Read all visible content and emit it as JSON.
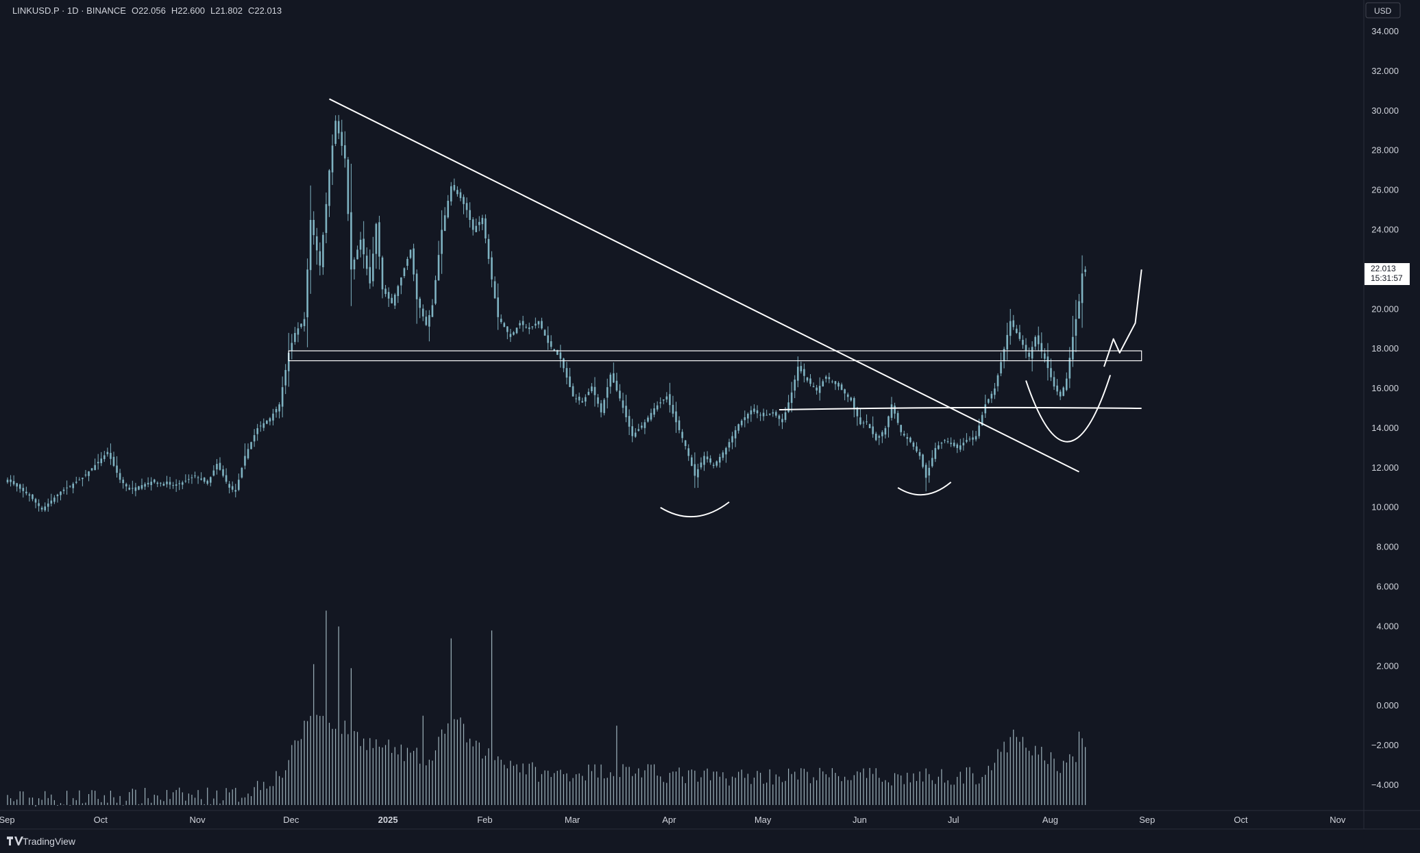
{
  "legend": {
    "symbol": "LINKUSD.P",
    "interval": "1D",
    "exchange": "BINANCE",
    "open": "O22.056",
    "high": "H22.600",
    "low": "L21.802",
    "close": "C22.013"
  },
  "currency_label": "USD",
  "last_price": {
    "value": "22.013",
    "countdown": "15:31:57"
  },
  "footer": {
    "brand": "TradingView"
  },
  "colors": {
    "background": "#131722",
    "candle": "#7fb3c2",
    "volume": "#9fb4bd",
    "drawings": "#ffffff",
    "text": "#d1d4dc"
  },
  "chart_data": {
    "type": "candlestick",
    "title": "",
    "y_ticks": [
      "34.000",
      "32.000",
      "30.000",
      "28.000",
      "26.000",
      "24.000",
      "22.000",
      "20.000",
      "18.000",
      "16.000",
      "14.000",
      "12.000",
      "10.000",
      "8.000",
      "6.000",
      "4.000",
      "2.000",
      "0.000",
      "−2.000",
      "−4.000"
    ],
    "ylim": [
      -5,
      35
    ],
    "x_ticks": [
      {
        "label": "Sep",
        "date": "2024-09-01",
        "bold": false
      },
      {
        "label": "Oct",
        "date": "2024-10-01",
        "bold": false
      },
      {
        "label": "Nov",
        "date": "2024-11-01",
        "bold": false
      },
      {
        "label": "Dec",
        "date": "2024-12-01",
        "bold": false
      },
      {
        "label": "2025",
        "date": "2025-01-01",
        "bold": true
      },
      {
        "label": "Feb",
        "date": "2025-02-01",
        "bold": false
      },
      {
        "label": "Mar",
        "date": "2025-03-01",
        "bold": false
      },
      {
        "label": "Apr",
        "date": "2025-04-01",
        "bold": false
      },
      {
        "label": "May",
        "date": "2025-05-01",
        "bold": false
      },
      {
        "label": "Jun",
        "date": "2025-06-01",
        "bold": false
      },
      {
        "label": "Jul",
        "date": "2025-07-01",
        "bold": false
      },
      {
        "label": "Aug",
        "date": "2025-08-01",
        "bold": false
      },
      {
        "label": "Sep",
        "date": "2025-09-01",
        "bold": false
      },
      {
        "label": "Oct",
        "date": "2025-10-01",
        "bold": false
      },
      {
        "label": "Nov",
        "date": "2025-11-01",
        "bold": false
      }
    ],
    "xlim": [
      "2024-09-01",
      "2025-11-12"
    ],
    "price_path": [
      [
        "2024-09-01",
        11.4
      ],
      [
        "2024-09-08",
        10.6
      ],
      [
        "2024-09-12",
        9.9
      ],
      [
        "2024-09-18",
        10.8
      ],
      [
        "2024-09-25",
        11.5
      ],
      [
        "2024-09-30",
        12.3
      ],
      [
        "2024-10-03",
        12.8
      ],
      [
        "2024-10-07",
        11.4
      ],
      [
        "2024-10-10",
        10.9
      ],
      [
        "2024-10-17",
        11.3
      ],
      [
        "2024-10-25",
        11.1
      ],
      [
        "2024-10-31",
        11.6
      ],
      [
        "2024-11-04",
        11.2
      ],
      [
        "2024-11-07",
        12.2
      ],
      [
        "2024-11-11",
        11.0
      ],
      [
        "2024-11-13",
        10.8
      ],
      [
        "2024-11-16",
        12.6
      ],
      [
        "2024-11-20",
        14.0
      ],
      [
        "2024-11-24",
        14.5
      ],
      [
        "2024-11-27",
        15.2
      ],
      [
        "2024-11-30",
        17.8
      ],
      [
        "2024-12-02",
        18.8
      ],
      [
        "2024-12-05",
        19.5
      ],
      [
        "2024-12-07",
        24.5
      ],
      [
        "2024-12-10",
        22.2
      ],
      [
        "2024-12-12",
        25.3
      ],
      [
        "2024-12-13",
        27.0
      ],
      [
        "2024-12-15",
        29.5
      ],
      [
        "2024-12-18",
        27.6
      ],
      [
        "2024-12-20",
        22.0
      ],
      [
        "2024-12-23",
        23.5
      ],
      [
        "2024-12-26",
        21.3
      ],
      [
        "2024-12-28",
        24.3
      ],
      [
        "2024-12-30",
        21.0
      ],
      [
        "2025-01-02",
        20.3
      ],
      [
        "2025-01-05",
        21.6
      ],
      [
        "2025-01-08",
        23.0
      ],
      [
        "2025-01-10",
        20.5
      ],
      [
        "2025-01-13",
        19.2
      ],
      [
        "2025-01-15",
        20.2
      ],
      [
        "2025-01-18",
        24.0
      ],
      [
        "2025-01-21",
        26.2
      ],
      [
        "2025-01-24",
        25.6
      ],
      [
        "2025-01-26",
        25.0
      ],
      [
        "2025-01-28",
        24.0
      ],
      [
        "2025-01-31",
        24.6
      ],
      [
        "2025-02-03",
        21.5
      ],
      [
        "2025-02-05",
        19.6
      ],
      [
        "2025-02-09",
        18.6
      ],
      [
        "2025-02-12",
        19.3
      ],
      [
        "2025-02-15",
        19.0
      ],
      [
        "2025-02-18",
        19.4
      ],
      [
        "2025-02-21",
        18.3
      ],
      [
        "2025-02-25",
        17.5
      ],
      [
        "2025-03-01",
        15.6
      ],
      [
        "2025-03-04",
        15.3
      ],
      [
        "2025-03-07",
        16.1
      ],
      [
        "2025-03-10",
        14.8
      ],
      [
        "2025-03-13",
        16.7
      ],
      [
        "2025-03-16",
        15.5
      ],
      [
        "2025-03-20",
        13.6
      ],
      [
        "2025-03-24",
        14.3
      ],
      [
        "2025-03-27",
        15.0
      ],
      [
        "2025-03-31",
        15.6
      ],
      [
        "2025-04-03",
        14.3
      ],
      [
        "2025-04-06",
        13.1
      ],
      [
        "2025-04-09",
        11.6
      ],
      [
        "2025-04-12",
        12.6
      ],
      [
        "2025-04-15",
        12.1
      ],
      [
        "2025-04-19",
        13.0
      ],
      [
        "2025-04-23",
        14.2
      ],
      [
        "2025-04-27",
        14.9
      ],
      [
        "2025-05-01",
        14.6
      ],
      [
        "2025-05-04",
        14.8
      ],
      [
        "2025-05-07",
        14.3
      ],
      [
        "2025-05-10",
        15.8
      ],
      [
        "2025-05-12",
        17.1
      ],
      [
        "2025-05-15",
        16.4
      ],
      [
        "2025-05-18",
        15.9
      ],
      [
        "2025-05-21",
        16.6
      ],
      [
        "2025-05-25",
        16.1
      ],
      [
        "2025-05-29",
        15.4
      ],
      [
        "2025-06-01",
        14.2
      ],
      [
        "2025-06-03",
        14.3
      ],
      [
        "2025-06-06",
        13.4
      ],
      [
        "2025-06-09",
        14.0
      ],
      [
        "2025-06-11",
        15.2
      ],
      [
        "2025-06-14",
        13.8
      ],
      [
        "2025-06-17",
        13.3
      ],
      [
        "2025-06-20",
        12.6
      ],
      [
        "2025-06-22",
        11.5
      ],
      [
        "2025-06-25",
        13.0
      ],
      [
        "2025-06-28",
        13.4
      ],
      [
        "2025-07-02",
        13.0
      ],
      [
        "2025-07-05",
        13.4
      ],
      [
        "2025-07-08",
        13.6
      ],
      [
        "2025-07-11",
        15.2
      ],
      [
        "2025-07-14",
        16.0
      ],
      [
        "2025-07-17",
        18.0
      ],
      [
        "2025-07-19",
        19.4
      ],
      [
        "2025-07-22",
        18.5
      ],
      [
        "2025-07-25",
        17.6
      ],
      [
        "2025-07-27",
        18.6
      ],
      [
        "2025-07-30",
        17.5
      ],
      [
        "2025-08-02",
        16.1
      ],
      [
        "2025-08-04",
        15.6
      ],
      [
        "2025-08-06",
        16.5
      ],
      [
        "2025-08-08",
        18.6
      ],
      [
        "2025-08-10",
        20.4
      ],
      [
        "2025-08-11",
        21.8
      ],
      [
        "2025-08-12",
        22.0
      ]
    ],
    "volume_path": [
      [
        "2024-09-01",
        -4.7
      ],
      [
        "2024-11-14",
        -4.5
      ],
      [
        "2024-11-28",
        -3.4
      ],
      [
        "2024-12-07",
        -0.4
      ],
      [
        "2024-12-14",
        -0.8
      ],
      [
        "2024-12-25",
        -1.8
      ],
      [
        "2025-01-15",
        -2.8
      ],
      [
        "2025-01-21",
        -0.2
      ],
      [
        "2025-01-28",
        -2.1
      ],
      [
        "2025-02-05",
        -2.6
      ],
      [
        "2025-02-20",
        -3.5
      ],
      [
        "2025-03-15",
        -3.2
      ],
      [
        "2025-04-10",
        -3.6
      ],
      [
        "2025-05-15",
        -3.5
      ],
      [
        "2025-06-15",
        -3.6
      ],
      [
        "2025-07-10",
        -3.5
      ],
      [
        "2025-07-20",
        -1.7
      ],
      [
        "2025-07-30",
        -2.5
      ],
      [
        "2025-08-05",
        -3.1
      ],
      [
        "2025-08-12",
        -1.9
      ]
    ],
    "volume_spikes": [
      [
        "2024-12-08",
        2.1
      ],
      [
        "2024-12-12",
        4.8
      ],
      [
        "2024-12-16",
        4.0
      ],
      [
        "2024-12-20",
        1.9
      ],
      [
        "2025-01-21",
        3.4
      ],
      [
        "2025-02-03",
        3.8
      ],
      [
        "2025-01-12",
        -0.5
      ],
      [
        "2025-07-20",
        -1.2
      ],
      [
        "2025-08-10",
        -1.3
      ],
      [
        "2025-03-15",
        -1.0
      ]
    ],
    "annotations": {
      "trendline": [
        [
          "2024-12-13",
          30.6
        ],
        [
          "2025-08-10",
          11.8
        ]
      ],
      "resistance_band": {
        "from": "2024-11-30",
        "to": "2025-08-30",
        "top": 17.9,
        "bottom": 17.4
      },
      "support_line": {
        "from": "2025-05-06",
        "to": "2025-08-30",
        "level": 15.0
      },
      "projection": [
        [
          "2025-08-18",
          17.1
        ],
        [
          "2025-08-21",
          18.5
        ],
        [
          "2025-08-23",
          17.8
        ],
        [
          "2025-08-26",
          18.7
        ],
        [
          "2025-08-28",
          19.3
        ],
        [
          "2025-08-30",
          22.0
        ]
      ],
      "arcs": [
        {
          "from": "2025-03-29",
          "to": "2025-04-20",
          "top": 10.0,
          "bottom": 9.5
        },
        {
          "from": "2025-06-13",
          "to": "2025-06-30",
          "top": 11.0,
          "bottom": 10.6
        },
        {
          "from": "2025-07-24",
          "to": "2025-08-20",
          "top": 16.4,
          "bottom": 13.4
        }
      ]
    }
  }
}
